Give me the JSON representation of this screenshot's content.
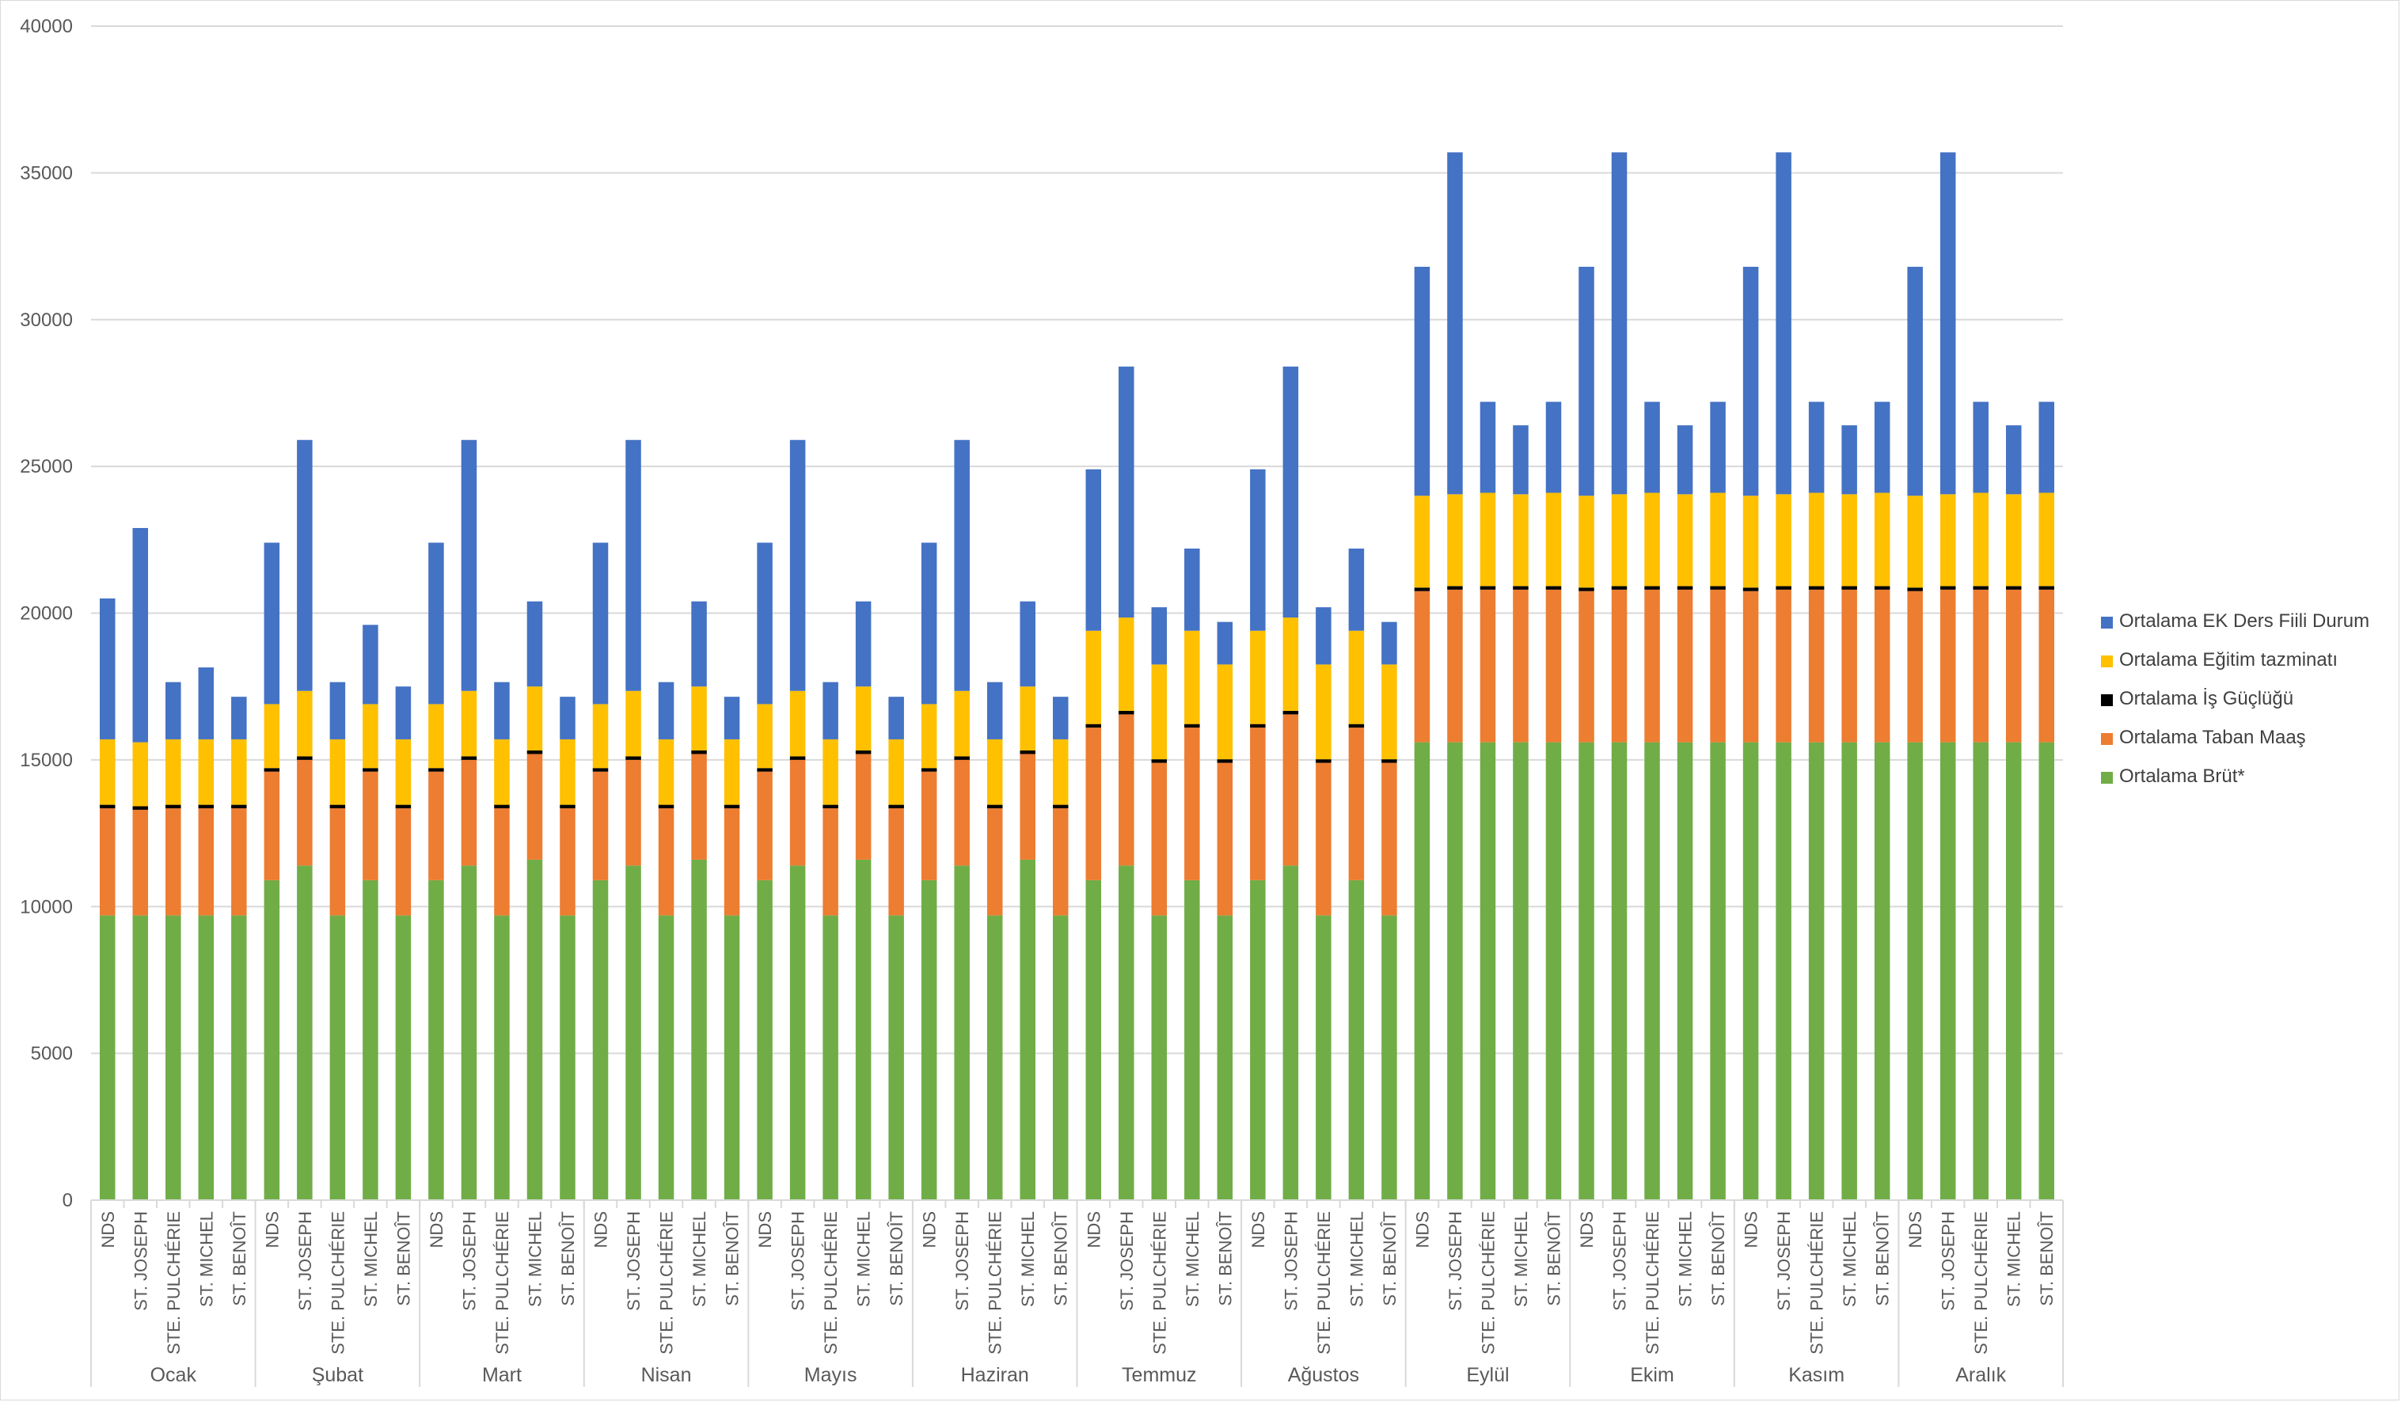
{
  "chart_data": {
    "type": "bar",
    "stacked": true,
    "title": "",
    "xlabel": "",
    "ylabel": "",
    "ylim": [
      0,
      40000
    ],
    "y_ticks": [
      0,
      5000,
      10000,
      15000,
      20000,
      25000,
      30000,
      35000,
      40000
    ],
    "grid": true,
    "legend_position": "right",
    "groups": [
      "Ocak",
      "Şubat",
      "Mart",
      "Nisan",
      "Mayıs",
      "Haziran",
      "Temmuz",
      "Ağustos",
      "Eylül",
      "Ekim",
      "Kasım",
      "Aralık"
    ],
    "categories": [
      "NDS",
      "ST. JOSEPH",
      "STE. PULCHÉRIE",
      "ST. MICHEL",
      "ST. BENOÎT"
    ],
    "series": [
      {
        "name": "Ortalama Brüt*",
        "color": "#70AD47",
        "values": [
          [
            9700,
            9700,
            9700,
            9700,
            9700
          ],
          [
            10900,
            11400,
            9700,
            10900,
            9700
          ],
          [
            10900,
            11400,
            9700,
            11600,
            9700
          ],
          [
            10900,
            11400,
            9700,
            11600,
            9700
          ],
          [
            10900,
            11400,
            9700,
            11600,
            9700
          ],
          [
            10900,
            11400,
            9700,
            11600,
            9700
          ],
          [
            10900,
            11400,
            9700,
            10900,
            9700
          ],
          [
            10900,
            11400,
            9700,
            10900,
            9700
          ],
          [
            15600,
            15600,
            15600,
            15600,
            15600
          ],
          [
            15600,
            15600,
            15600,
            15600,
            15600
          ],
          [
            15600,
            15600,
            15600,
            15600,
            15600
          ],
          [
            15600,
            15600,
            15600,
            15600,
            15600
          ]
        ]
      },
      {
        "name": "Ortalama Taban Maaş",
        "color": "#ED7D31",
        "values": [
          [
            3650,
            3600,
            3650,
            3650,
            3650
          ],
          [
            3700,
            3600,
            3650,
            3700,
            3650
          ],
          [
            3700,
            3600,
            3650,
            3600,
            3650
          ],
          [
            3700,
            3600,
            3650,
            3600,
            3650
          ],
          [
            3700,
            3600,
            3650,
            3600,
            3650
          ],
          [
            3700,
            3600,
            3650,
            3600,
            3650
          ],
          [
            5200,
            5150,
            5200,
            5200,
            5200
          ],
          [
            5200,
            5150,
            5200,
            5200,
            5200
          ],
          [
            5150,
            5200,
            5200,
            5200,
            5200
          ],
          [
            5150,
            5200,
            5200,
            5200,
            5200
          ],
          [
            5150,
            5200,
            5200,
            5200,
            5200
          ],
          [
            5150,
            5200,
            5200,
            5200,
            5200
          ]
        ]
      },
      {
        "name": "Ortalama İş Güçlüğü",
        "color": "#000000",
        "values": [
          [
            120,
            120,
            120,
            120,
            120
          ],
          [
            120,
            120,
            120,
            120,
            120
          ],
          [
            120,
            120,
            120,
            120,
            120
          ],
          [
            120,
            120,
            120,
            120,
            120
          ],
          [
            120,
            120,
            120,
            120,
            120
          ],
          [
            120,
            120,
            120,
            120,
            120
          ],
          [
            120,
            120,
            120,
            120,
            120
          ],
          [
            120,
            120,
            120,
            120,
            120
          ],
          [
            120,
            120,
            120,
            120,
            120
          ],
          [
            120,
            120,
            120,
            120,
            120
          ],
          [
            120,
            120,
            120,
            120,
            120
          ],
          [
            120,
            120,
            120,
            120,
            120
          ]
        ]
      },
      {
        "name": "Ortalama Eğitim tazminatı",
        "color": "#FFC000",
        "values": [
          [
            2230,
            2180,
            2230,
            2230,
            2230
          ],
          [
            2180,
            2230,
            2230,
            2180,
            2230
          ],
          [
            2180,
            2230,
            2230,
            2180,
            2230
          ],
          [
            2180,
            2230,
            2230,
            2180,
            2230
          ],
          [
            2180,
            2230,
            2230,
            2180,
            2230
          ],
          [
            2180,
            2230,
            2230,
            2180,
            2230
          ],
          [
            3180,
            3180,
            3230,
            3180,
            3230
          ],
          [
            3180,
            3180,
            3230,
            3180,
            3230
          ],
          [
            3130,
            3130,
            3180,
            3130,
            3180
          ],
          [
            3130,
            3130,
            3180,
            3130,
            3180
          ],
          [
            3130,
            3130,
            3180,
            3130,
            3180
          ],
          [
            3130,
            3130,
            3180,
            3130,
            3180
          ]
        ]
      },
      {
        "name": "Ortalama EK Ders Fiili Durum",
        "color": "#4472C4",
        "values": [
          [
            4800,
            7300,
            1950,
            2450,
            1450
          ],
          [
            5500,
            8550,
            1950,
            2700,
            1800
          ],
          [
            5500,
            8550,
            1950,
            2900,
            1450
          ],
          [
            5500,
            8550,
            1950,
            2900,
            1450
          ],
          [
            5500,
            8550,
            1950,
            2900,
            1450
          ],
          [
            5500,
            8550,
            1950,
            2900,
            1450
          ],
          [
            5500,
            8550,
            1950,
            2800,
            1450
          ],
          [
            5500,
            8550,
            1950,
            2800,
            1450
          ],
          [
            7800,
            11650,
            3100,
            2350,
            3100
          ],
          [
            7800,
            11650,
            3100,
            2350,
            3100
          ],
          [
            7800,
            11650,
            3100,
            2350,
            3100
          ],
          [
            7800,
            11650,
            3100,
            2350,
            3100
          ]
        ]
      }
    ],
    "legend_order": [
      "Ortalama EK Ders Fiili Durum",
      "Ortalama Eğitim tazminatı",
      "Ortalama İş Güçlüğü",
      "Ortalama Taban Maaş",
      "Ortalama Brüt*"
    ]
  }
}
